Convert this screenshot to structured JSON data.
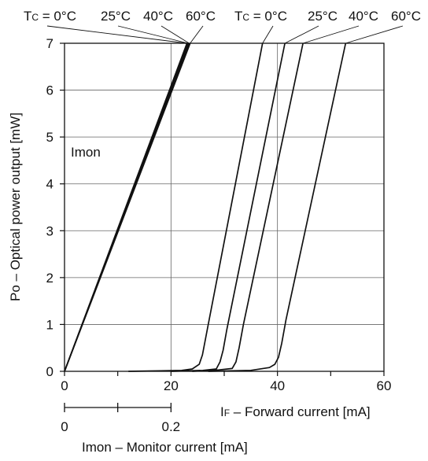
{
  "chart_data": {
    "type": "line",
    "title": "",
    "xlabel_parts": [
      "I",
      "F",
      " – Forward current [mA]"
    ],
    "ylabel": "Po – Optical power output [mW]",
    "xlim": [
      0,
      60
    ],
    "ylim": [
      0,
      7
    ],
    "x_ticks": [
      0,
      20,
      40,
      60
    ],
    "x_tick_labels": [
      "0",
      "20",
      "40",
      "60"
    ],
    "y_ticks": [
      0,
      1,
      2,
      3,
      4,
      5,
      6,
      7
    ],
    "y_tick_labels": [
      "0",
      "1",
      "2",
      "3",
      "4",
      "5",
      "6",
      "7"
    ],
    "grid": true,
    "secondary_axis": {
      "label": "Imon – Monitor current [mA]",
      "ticks": [
        0,
        0.1,
        0.2
      ],
      "tick_labels": [
        "0",
        "0.2"
      ],
      "range": [
        0,
        0.2
      ]
    },
    "annotations": {
      "imon_label": "Imon",
      "temp_header_left": [
        "T",
        "C",
        " = 0°C"
      ],
      "temp_header_right": [
        "T",
        "C",
        " = 0°C"
      ],
      "temps_left": [
        "25°C",
        "40°C",
        "60°C"
      ],
      "temps_right": [
        "25°C",
        "40°C",
        "60°C"
      ]
    },
    "series": [
      {
        "group": "imon",
        "label": "0°C",
        "x": [
          0,
          23.0
        ],
        "y": [
          0,
          7
        ]
      },
      {
        "group": "imon",
        "label": "25°C",
        "x": [
          0,
          23.2
        ],
        "y": [
          0,
          7
        ]
      },
      {
        "group": "imon",
        "label": "40°C",
        "x": [
          0,
          23.4
        ],
        "y": [
          0,
          7
        ]
      },
      {
        "group": "imon",
        "label": "60°C",
        "x": [
          0,
          23.6
        ],
        "y": [
          0,
          7
        ]
      },
      {
        "group": "if",
        "label": "0°C",
        "x": [
          12,
          18,
          22,
          24,
          25.3,
          25.9,
          27.0,
          37.2
        ],
        "y": [
          0,
          0.01,
          0.02,
          0.05,
          0.15,
          0.35,
          1.0,
          7
        ]
      },
      {
        "group": "if",
        "label": "25°C",
        "x": [
          20,
          26,
          28.5,
          29.2,
          29.8,
          30.5,
          41.4
        ],
        "y": [
          0,
          0.02,
          0.05,
          0.2,
          0.45,
          0.9,
          7
        ]
      },
      {
        "group": "if",
        "label": "40°C",
        "x": [
          24,
          29,
          31.5,
          32.2,
          32.8,
          33.6,
          44.8
        ],
        "y": [
          0,
          0.03,
          0.06,
          0.2,
          0.5,
          1.0,
          7
        ]
      },
      {
        "group": "if",
        "label": "60°C",
        "x": [
          27,
          35,
          38.5,
          39.5,
          40.2,
          40.8,
          41.6,
          52.8
        ],
        "y": [
          0,
          0.02,
          0.08,
          0.15,
          0.3,
          0.6,
          1.1,
          7
        ]
      }
    ]
  }
}
